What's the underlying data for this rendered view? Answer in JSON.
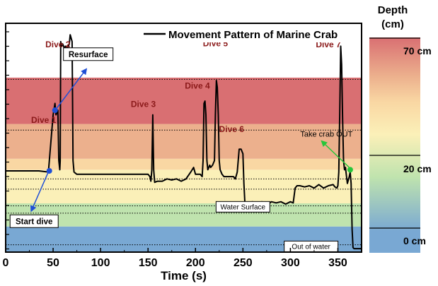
{
  "chart_data": {
    "type": "line",
    "title": "Movement Pattern of Marine Crab",
    "xlabel": "Time (s)",
    "ylabel": "",
    "xlim": [
      0,
      375
    ],
    "ylim": [
      0,
      100
    ],
    "xticks": [
      "0",
      "50",
      "100",
      "150",
      "200",
      "250",
      "300",
      "350"
    ],
    "xtick_values": [
      0,
      50,
      100,
      150,
      200,
      250,
      300,
      350
    ],
    "legend": "top-right",
    "bands": [
      {
        "from": 0,
        "to": 11.2,
        "color": "#79a8d3"
      },
      {
        "from": 11.2,
        "to": 21.3,
        "color": "#bfe3ae"
      },
      {
        "from": 21.3,
        "to": 36.0,
        "color": "#fbf0b8"
      },
      {
        "from": 36.0,
        "to": 40.8,
        "color": "#f9d7a3"
      },
      {
        "from": 40.8,
        "to": 56.0,
        "color": "#ecb08d"
      },
      {
        "from": 56.0,
        "to": 76.3,
        "color": "#d96f72"
      },
      {
        "from": 76.3,
        "to": 100,
        "color": "#ffffff"
      }
    ],
    "reference_lines": [
      3.2,
      17.0,
      20.2,
      27.5,
      32.0,
      53.3,
      75.5
    ],
    "series": [
      {
        "name": "Movement Pattern of Marine Crab",
        "x": [
          0,
          10,
          20,
          35,
          45,
          48,
          50,
          52,
          53,
          55,
          56,
          57,
          57.5,
          58,
          59,
          60,
          62,
          63,
          65,
          67,
          68,
          70,
          71,
          72,
          75,
          80,
          90,
          100,
          120,
          135,
          142,
          150,
          152,
          153,
          154,
          155,
          156,
          157,
          160,
          165,
          170,
          175,
          180,
          185,
          190,
          195,
          198,
          200,
          205,
          207,
          208,
          209,
          210,
          211,
          212,
          213,
          215,
          216,
          218,
          220,
          221,
          222,
          223,
          224,
          225,
          226,
          228,
          230,
          235,
          240,
          242,
          244,
          246,
          248,
          250,
          251,
          252,
          255,
          260,
          265,
          270,
          275,
          280,
          285,
          290,
          295,
          300,
          303,
          305,
          307,
          310,
          315,
          320,
          325,
          330,
          335,
          340,
          345,
          347,
          349,
          350,
          351,
          352,
          353,
          354,
          355,
          356,
          357,
          358,
          360,
          362,
          363,
          364,
          365,
          366,
          367,
          370,
          375
        ],
        "y": [
          35.5,
          35.5,
          35.5,
          35.5,
          35,
          50,
          60,
          65,
          60,
          62,
          40,
          36,
          40,
          92,
          90,
          91,
          89,
          90,
          89,
          91,
          95,
          92,
          40,
          35,
          34,
          34,
          34,
          34,
          34,
          34,
          34,
          34,
          33,
          31,
          36,
          60,
          36,
          30.5,
          31,
          31,
          32,
          31.5,
          32,
          31,
          32,
          35,
          37,
          34,
          34,
          33,
          40,
          65,
          66,
          60,
          40,
          36,
          38,
          37,
          38,
          40,
          60,
          75,
          72,
          60,
          40,
          36,
          34,
          33,
          33,
          33,
          32,
          35,
          45,
          45,
          43,
          30,
          22,
          21.5,
          22,
          21.5,
          22,
          20.5,
          22,
          21.5,
          22,
          21,
          22,
          21.5,
          28,
          29,
          29,
          28.5,
          29,
          28,
          29.5,
          28,
          29,
          29.5,
          28.5,
          28,
          29,
          35,
          60,
          90,
          82,
          58,
          40,
          36,
          37,
          30,
          33,
          35,
          30,
          10,
          2,
          1.5,
          1.5,
          1.5
        ]
      }
    ],
    "annotations": [
      {
        "id": "dive-1",
        "text": "Dive 1",
        "x": 40,
        "y": 56.5
      },
      {
        "id": "dive-2",
        "text": "Dive 2",
        "x": 55,
        "y": 89.5
      },
      {
        "id": "dive-3",
        "text": "Dive 3",
        "x": 145,
        "y": 63.5
      },
      {
        "id": "dive-4",
        "text": "Dive 4",
        "x": 202,
        "y": 71.5
      },
      {
        "id": "dive-5",
        "text": "Dive 5",
        "x": 221,
        "y": 90
      },
      {
        "id": "dive-6",
        "text": "Dive 6",
        "x": 238,
        "y": 52.5
      },
      {
        "id": "dive-7",
        "text": "Dive 7",
        "x": 340,
        "y": 89.5
      },
      {
        "id": "resurface",
        "text": "Resurface",
        "x": 87,
        "y": 86.5
      },
      {
        "id": "start-dive",
        "text": "Start dive",
        "x": 30,
        "y": 13.5
      },
      {
        "id": "water-surface",
        "text": "Water Surface",
        "x": 250,
        "y": 19.8
      },
      {
        "id": "out-of-water",
        "text": "Out of water",
        "x": 374,
        "y": 2.5
      },
      {
        "id": "take-crab-out",
        "text": "Take crab OUT",
        "x": 338,
        "y": 50.5
      }
    ],
    "colorbar": {
      "title_line1": "Depth",
      "title_line2": "(cm)",
      "labels": [
        {
          "text": "70 cm",
          "value": 100
        },
        {
          "text": "20 cm",
          "value": 40
        },
        {
          "text": "0 cm",
          "value": 0
        }
      ],
      "gradient": [
        "#79a8d3",
        "#bfe3ae",
        "#fbf0b8",
        "#f9d7a3",
        "#ecb08d",
        "#d96f72"
      ]
    }
  }
}
